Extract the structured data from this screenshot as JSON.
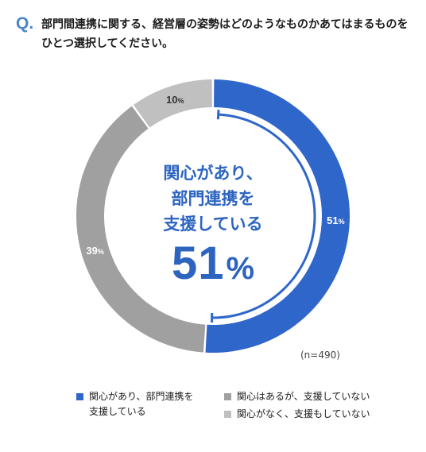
{
  "question": {
    "mark": "Q.",
    "lines": [
      "部門間連携に関する、経営層の姿勢はどのようなものかあてはまるものを",
      "ひとつ選択してください。"
    ]
  },
  "center": {
    "lines": [
      "関心があり、",
      "部門連携を",
      "支援している"
    ],
    "value": "51",
    "unit": "%"
  },
  "sample_size": "(n=490)",
  "colors": {
    "blue": "#2f66c9",
    "dark_gray": "#a0a0a0",
    "light_gray": "#c0c0c0",
    "text_blue": "#2c64c0"
  },
  "chart_data": {
    "type": "pie",
    "style": "donut",
    "series": [
      {
        "name": "関心があり、部門連携を支援している",
        "legend_lines": [
          "関心があり、部門連携を",
          "支援している"
        ],
        "value": 51,
        "label": "51",
        "color": "#2f66c9"
      },
      {
        "name": "関心はあるが、支援していない",
        "legend_lines": [
          "関心はあるが、支援していない"
        ],
        "value": 39,
        "label": "39",
        "color": "#a0a0a0"
      },
      {
        "name": "関心がなく、支援もしていない",
        "legend_lines": [
          "関心がなく、支援もしていない"
        ],
        "value": 10,
        "label": "10",
        "color": "#c0c0c0"
      }
    ],
    "unit": "%",
    "legend_position": "bottom"
  }
}
